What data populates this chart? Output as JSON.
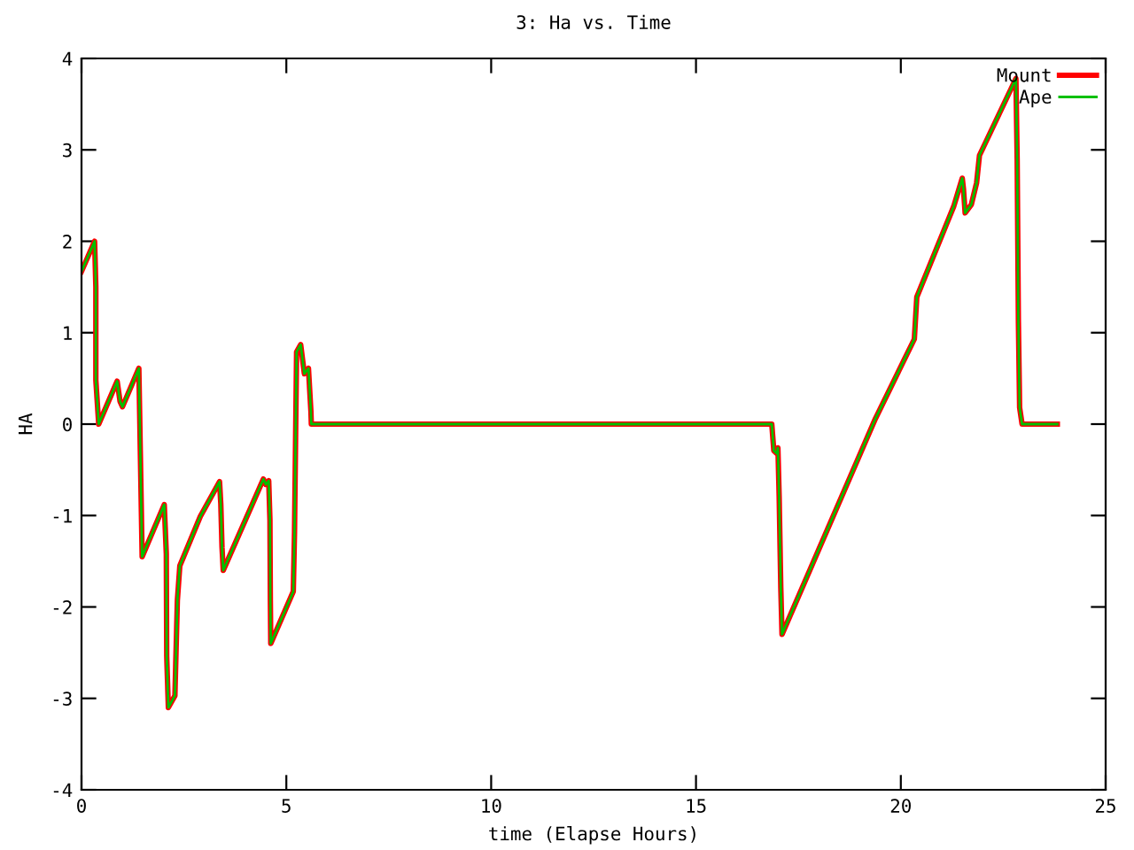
{
  "chart_data": {
    "type": "line",
    "title": "3: Ha vs. Time",
    "xlabel": "time (Elapse Hours)",
    "ylabel": "HA",
    "x": [
      0,
      0.32,
      0.35,
      0.35,
      0.42,
      0.87,
      0.94,
      1.0,
      1.4,
      1.42,
      1.48,
      2.02,
      2.07,
      2.08,
      2.12,
      2.28,
      2.34,
      2.4,
      2.9,
      3.37,
      3.4,
      3.43,
      3.46,
      4.44,
      4.5,
      4.57,
      4.6,
      4.61,
      4.62,
      5.17,
      5.2,
      5.25,
      5.35,
      5.44,
      5.54,
      5.6,
      5.61,
      16.85,
      16.9,
      16.97,
      17.0,
      17.03,
      17.07,
      17.1,
      19.38,
      20.33,
      20.39,
      21.29,
      21.5,
      21.53,
      21.57,
      21.72,
      21.85,
      21.92,
      22.81,
      22.84,
      22.87,
      22.9,
      22.96,
      23.82
    ],
    "series": [
      {
        "name": "Mount",
        "color": "#ff0000",
        "values": [
          1.67,
          2.0,
          1.5,
          0.48,
          0.0,
          0.47,
          0.25,
          0.19,
          0.61,
          0.1,
          -1.45,
          -0.88,
          -1.42,
          -2.54,
          -3.1,
          -2.97,
          -1.93,
          -1.55,
          -1.01,
          -0.63,
          -0.87,
          -1.35,
          -1.6,
          -0.6,
          -0.66,
          -0.62,
          -1.05,
          -1.93,
          -2.4,
          -1.83,
          -1.18,
          0.79,
          0.87,
          0.55,
          0.61,
          0.14,
          0.0,
          0.0,
          -0.29,
          -0.32,
          -0.26,
          -0.79,
          -1.79,
          -2.3,
          0.06,
          0.93,
          1.39,
          2.38,
          2.69,
          2.57,
          2.31,
          2.4,
          2.64,
          2.94,
          3.78,
          2.9,
          1.12,
          0.18,
          0.0,
          0.0
        ]
      },
      {
        "name": "Ape",
        "color": "#00c000",
        "values": [
          1.67,
          2.0,
          1.5,
          0.48,
          0.0,
          0.47,
          0.25,
          0.19,
          0.61,
          0.1,
          -1.45,
          -0.88,
          -1.42,
          -2.54,
          -3.1,
          -2.97,
          -1.93,
          -1.55,
          -1.01,
          -0.63,
          -0.87,
          -1.35,
          -1.6,
          -0.6,
          -0.66,
          -0.62,
          -1.05,
          -1.93,
          -2.4,
          -1.83,
          -1.18,
          0.79,
          0.87,
          0.55,
          0.61,
          0.14,
          0.0,
          0.0,
          -0.29,
          -0.32,
          -0.26,
          -0.79,
          -1.79,
          -2.3,
          0.06,
          0.93,
          1.39,
          2.38,
          2.69,
          2.57,
          2.31,
          2.4,
          2.64,
          2.94,
          3.78,
          2.9,
          1.12,
          0.18,
          0.0,
          0.0
        ]
      }
    ],
    "xlim": [
      0,
      25
    ],
    "ylim": [
      -4,
      4
    ],
    "xticks": [
      0,
      5,
      10,
      15,
      20,
      25
    ],
    "yticks": [
      -4,
      -3,
      -2,
      -1,
      0,
      1,
      2,
      3,
      4
    ],
    "grid": false,
    "legend": "top right",
    "marker": "none",
    "line_style": "solid"
  }
}
